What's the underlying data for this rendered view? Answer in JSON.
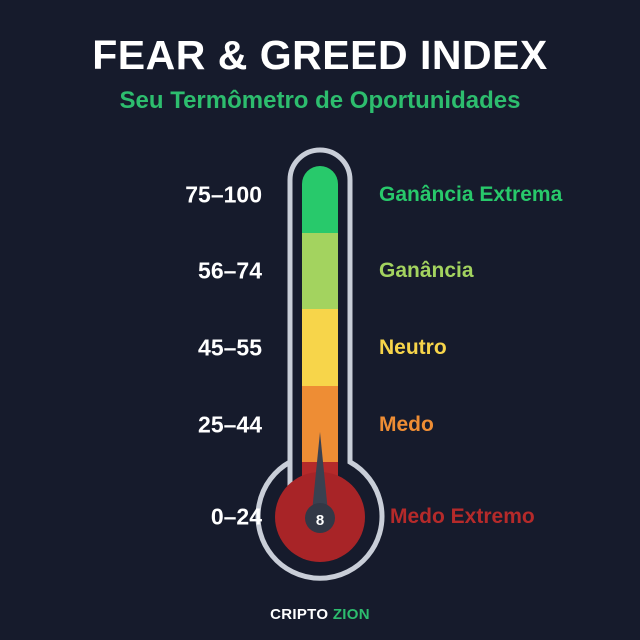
{
  "title": "FEAR & GREED INDEX",
  "subtitle": "Seu Termômetro de Oportunidades",
  "scale": [
    {
      "range": "75–100",
      "label": "Ganância Extrema",
      "color": "#28c96b"
    },
    {
      "range": "56–74",
      "label": "Ganância",
      "color": "#a3d35f"
    },
    {
      "range": "45–55",
      "label": "Neutro",
      "color": "#f7d54a"
    },
    {
      "range": "25–44",
      "label": "Medo",
      "color": "#ee8d34"
    },
    {
      "range": "0–24",
      "label": "Medo Extremo",
      "color": "#b52a2a"
    }
  ],
  "indicator": {
    "value": "8",
    "pointer_color": "#3a4150"
  },
  "brand": {
    "part1": "CRIPTO ",
    "part2": "ZION",
    "accent_color": "#2dbd6e"
  }
}
